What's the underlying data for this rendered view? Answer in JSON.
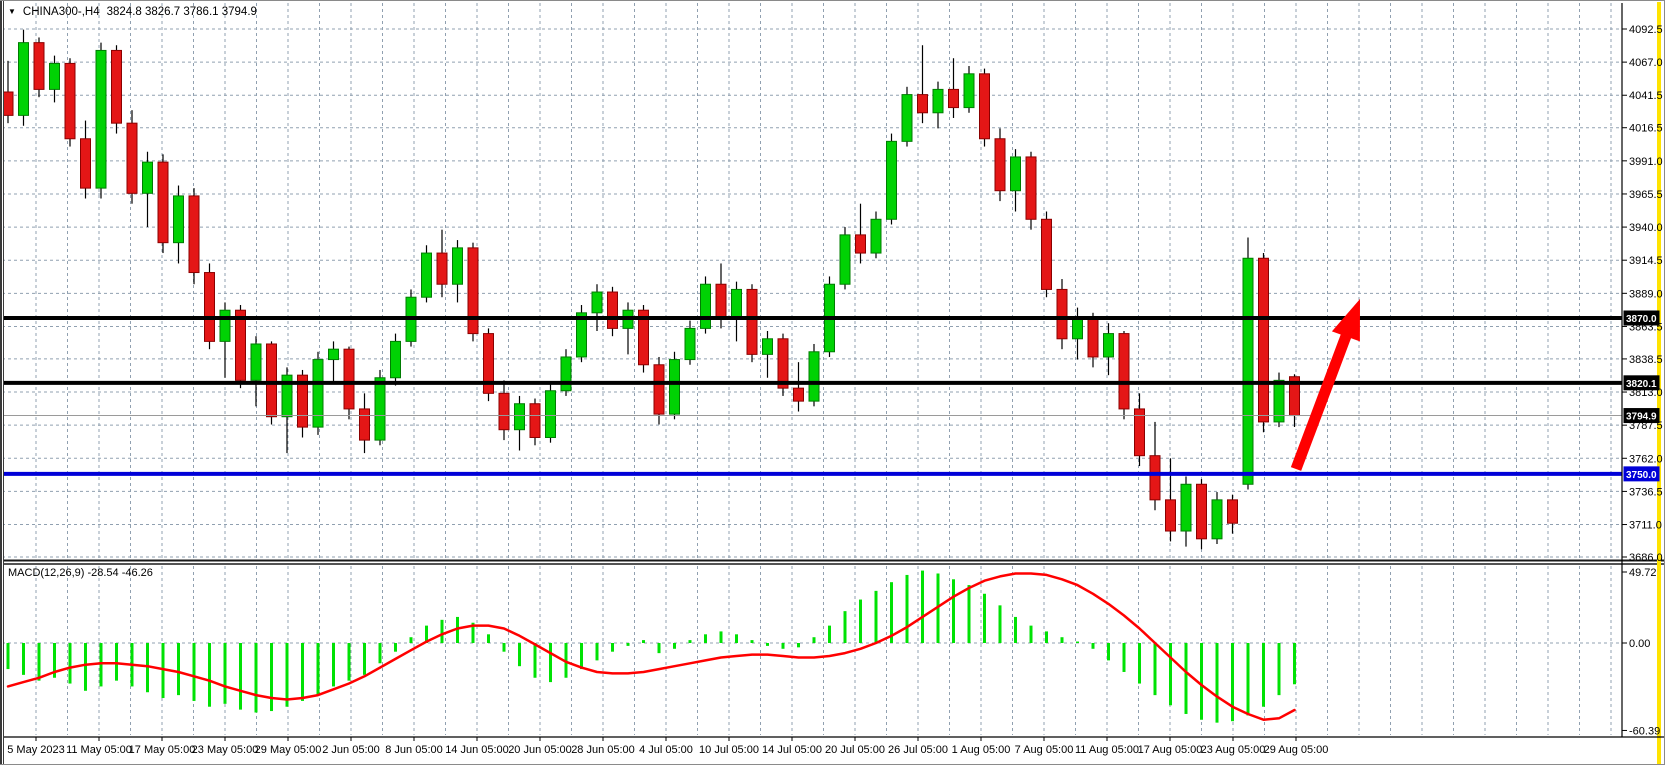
{
  "window": {
    "symbol": "CHINA300-,H4",
    "ohlc": "3824.8 3826.7 3786.1 3794.9",
    "dropdown_icon": "▼"
  },
  "indicator_label": "MACD(12,26,9) -28.54 -46.26",
  "colors": {
    "bull_fill": "#00D204",
    "bull_border": "#007C02",
    "bear_fill": "#E41616",
    "bear_border": "#8B0000",
    "wick": "#000000",
    "grid": "#90A0B0",
    "histogram": "#00E204",
    "signal": "#FF0000",
    "level_black": "#000000",
    "level_blue": "#0000D8",
    "current_price_line": "#9A9A9A",
    "arrow": "#FF0000",
    "axis_strip": "#FFE300"
  },
  "price_axis": {
    "ticks": [
      "4092.5",
      "4067.0",
      "4041.5",
      "4016.5",
      "3991.0",
      "3965.5",
      "3940.0",
      "3914.5",
      "3889.0",
      "3863.5",
      "3838.5",
      "3813.0",
      "3787.5",
      "3762.0",
      "3736.5",
      "3711.0",
      "3686.0"
    ],
    "badges": [
      {
        "text": "3870.0",
        "price": 3870.0,
        "style": "black"
      },
      {
        "text": "3820.1",
        "price": 3820.1,
        "style": "black"
      },
      {
        "text": "3794.9",
        "price": 3794.9,
        "style": "black"
      },
      {
        "text": "3750.0",
        "price": 3750.0,
        "style": "blue"
      }
    ]
  },
  "macd_axis": {
    "ticks": [
      {
        "text": "49.72",
        "value": 49.72
      },
      {
        "text": "0.00",
        "value": 0
      },
      {
        "text": "-60.39",
        "value": -60.39
      }
    ]
  },
  "time_axis": {
    "labels": [
      "5 May 2023",
      "11 May 05:00",
      "17 May 05:00",
      "23 May 05:00",
      "29 May 05:00",
      "2 Jun 05:00",
      "8 Jun 05:00",
      "14 Jun 05:00",
      "20 Jun 05:00",
      "28 Jun 05:00",
      "4 Jul 05:00",
      "10 Jul 05:00",
      "14 Jul 05:00",
      "20 Jul 05:00",
      "26 Jul 05:00",
      "1 Aug 05:00",
      "7 Aug 05:00",
      "11 Aug 05:00",
      "17 Aug 05:00",
      "23 Aug 05:00",
      "29 Aug 05:00"
    ]
  },
  "chart_data": [
    {
      "type": "candlestick",
      "title": "CHINA300-,H4",
      "timeframe": "H4",
      "ylim": [
        3686.0,
        4092.5
      ],
      "y_tick_step": 25.5,
      "grid": true,
      "last_candle": {
        "open": 3824.8,
        "high": 3826.7,
        "low": 3786.1,
        "close": 3794.9
      },
      "x_labels": [
        "5 May 2023",
        "11 May 05:00",
        "17 May 05:00",
        "23 May 05:00",
        "29 May 05:00",
        "2 Jun 05:00",
        "8 Jun 05:00",
        "14 Jun 05:00",
        "20 Jun 05:00",
        "28 Jun 05:00",
        "4 Jul 05:00",
        "10 Jul 05:00",
        "14 Jul 05:00",
        "20 Jul 05:00",
        "26 Jul 05:00",
        "1 Aug 05:00",
        "7 Aug 05:00",
        "11 Aug 05:00",
        "17 Aug 05:00",
        "23 Aug 05:00",
        "29 Aug 05:00"
      ],
      "hlines": [
        {
          "price": 3870.0,
          "color": "#000000",
          "width": 4,
          "role": "resistance"
        },
        {
          "price": 3820.1,
          "color": "#000000",
          "width": 4,
          "role": "resistance"
        },
        {
          "price": 3750.0,
          "color": "#0000D8",
          "width": 4,
          "role": "support"
        },
        {
          "price": 3794.9,
          "color": "#9A9A9A",
          "width": 1,
          "role": "current-price"
        }
      ],
      "annotations": [
        {
          "type": "arrow",
          "color": "#FF0000",
          "from_price": 3735,
          "to_price": 3878,
          "note": "up arrow from 3750 support toward 3870 resistance"
        }
      ],
      "ohlc": [
        [
          4044,
          4068,
          4020,
          4026
        ],
        [
          4026,
          4092,
          4018,
          4082
        ],
        [
          4082,
          4086,
          4040,
          4046
        ],
        [
          4046,
          4072,
          4036,
          4066
        ],
        [
          4066,
          4070,
          4002,
          4008
        ],
        [
          4008,
          4022,
          3962,
          3970
        ],
        [
          3970,
          4082,
          3962,
          4076
        ],
        [
          4076,
          4080,
          4012,
          4020
        ],
        [
          4020,
          4030,
          3958,
          3966
        ],
        [
          3966,
          3998,
          3940,
          3990
        ],
        [
          3990,
          3996,
          3920,
          3928
        ],
        [
          3928,
          3972,
          3912,
          3964
        ],
        [
          3964,
          3970,
          3896,
          3905
        ],
        [
          3905,
          3912,
          3846,
          3852
        ],
        [
          3852,
          3882,
          3824,
          3876
        ],
        [
          3876,
          3880,
          3816,
          3822
        ],
        [
          3822,
          3856,
          3802,
          3850
        ],
        [
          3850,
          3852,
          3788,
          3794
        ],
        [
          3794,
          3832,
          3766,
          3826
        ],
        [
          3826,
          3830,
          3778,
          3786
        ],
        [
          3786,
          3844,
          3780,
          3838
        ],
        [
          3838,
          3852,
          3820,
          3846
        ],
        [
          3846,
          3848,
          3792,
          3800
        ],
        [
          3800,
          3812,
          3766,
          3776
        ],
        [
          3776,
          3830,
          3772,
          3824
        ],
        [
          3824,
          3858,
          3818,
          3852
        ],
        [
          3852,
          3892,
          3848,
          3886
        ],
        [
          3886,
          3926,
          3882,
          3920
        ],
        [
          3920,
          3938,
          3886,
          3896
        ],
        [
          3896,
          3930,
          3882,
          3924
        ],
        [
          3924,
          3928,
          3852,
          3858
        ],
        [
          3858,
          3862,
          3806,
          3812
        ],
        [
          3812,
          3822,
          3776,
          3784
        ],
        [
          3784,
          3810,
          3768,
          3804
        ],
        [
          3804,
          3808,
          3772,
          3778
        ],
        [
          3778,
          3820,
          3774,
          3814
        ],
        [
          3814,
          3846,
          3810,
          3840
        ],
        [
          3840,
          3880,
          3836,
          3874
        ],
        [
          3874,
          3896,
          3860,
          3890
        ],
        [
          3890,
          3894,
          3856,
          3862
        ],
        [
          3862,
          3882,
          3842,
          3876
        ],
        [
          3876,
          3880,
          3828,
          3834
        ],
        [
          3834,
          3840,
          3788,
          3796
        ],
        [
          3796,
          3844,
          3792,
          3838
        ],
        [
          3838,
          3868,
          3834,
          3862
        ],
        [
          3862,
          3902,
          3858,
          3896
        ],
        [
          3896,
          3912,
          3862,
          3870
        ],
        [
          3870,
          3898,
          3852,
          3892
        ],
        [
          3892,
          3896,
          3836,
          3842
        ],
        [
          3842,
          3860,
          3824,
          3854
        ],
        [
          3854,
          3858,
          3810,
          3816
        ],
        [
          3816,
          3836,
          3798,
          3806
        ],
        [
          3806,
          3850,
          3802,
          3844
        ],
        [
          3844,
          3902,
          3840,
          3896
        ],
        [
          3896,
          3940,
          3892,
          3934
        ],
        [
          3934,
          3958,
          3912,
          3920
        ],
        [
          3920,
          3952,
          3916,
          3946
        ],
        [
          3946,
          4012,
          3942,
          4006
        ],
        [
          4006,
          4048,
          4002,
          4042
        ],
        [
          4042,
          4080,
          4020,
          4028
        ],
        [
          4028,
          4052,
          4016,
          4046
        ],
        [
          4046,
          4070,
          4024,
          4032
        ],
        [
          4032,
          4064,
          4028,
          4058
        ],
        [
          4058,
          4062,
          4002,
          4008
        ],
        [
          4008,
          4016,
          3960,
          3968
        ],
        [
          3968,
          4000,
          3952,
          3994
        ],
        [
          3994,
          3998,
          3938,
          3946
        ],
        [
          3946,
          3952,
          3886,
          3892
        ],
        [
          3892,
          3900,
          3846,
          3854
        ],
        [
          3854,
          3878,
          3838,
          3870
        ],
        [
          3870,
          3874,
          3832,
          3840
        ],
        [
          3840,
          3866,
          3826,
          3858
        ],
        [
          3858,
          3860,
          3792,
          3800
        ],
        [
          3800,
          3812,
          3756,
          3764
        ],
        [
          3764,
          3790,
          3722,
          3730
        ],
        [
          3730,
          3762,
          3698,
          3706
        ],
        [
          3706,
          3748,
          3694,
          3742
        ],
        [
          3742,
          3746,
          3692,
          3700
        ],
        [
          3700,
          3736,
          3696,
          3730
        ],
        [
          3730,
          3734,
          3704,
          3712
        ],
        [
          3742,
          3932,
          3738,
          3916
        ],
        [
          3916,
          3920,
          3782,
          3790
        ],
        [
          3790,
          3828,
          3786,
          3822
        ],
        [
          3824.8,
          3826.7,
          3786.1,
          3794.9
        ]
      ]
    },
    {
      "type": "macd",
      "params": "12,26,9",
      "current_values": {
        "macd": -28.54,
        "signal": -46.26
      },
      "ylim": [
        -60.39,
        49.72
      ],
      "histogram": [
        -18,
        -22,
        -26,
        -24,
        -28,
        -33,
        -30,
        -26,
        -30,
        -34,
        -38,
        -36,
        -40,
        -44,
        -42,
        -46,
        -48,
        -47,
        -44,
        -40,
        -36,
        -30,
        -26,
        -22,
        -14,
        -6,
        4,
        12,
        16,
        18,
        14,
        6,
        -6,
        -16,
        -24,
        -27,
        -24,
        -18,
        -12,
        -6,
        -2,
        2,
        -7,
        -4,
        2,
        6,
        8,
        6,
        2,
        -2,
        -4,
        -3,
        4,
        12,
        22,
        30,
        36,
        42,
        47,
        50,
        48,
        44,
        40,
        34,
        26,
        18,
        12,
        8,
        4,
        1,
        -4,
        -12,
        -20,
        -28,
        -36,
        -43,
        -49,
        -53,
        -55,
        -54,
        -50,
        -44,
        -36,
        -28.5
      ],
      "signal_line": [
        -30,
        -27,
        -24,
        -20,
        -17,
        -15,
        -14,
        -14,
        -15,
        -16,
        -18,
        -20,
        -23,
        -26,
        -30,
        -33,
        -36,
        -38,
        -39,
        -38,
        -36,
        -32,
        -28,
        -23,
        -17,
        -11,
        -5,
        1,
        6,
        10,
        12,
        12,
        10,
        5,
        -1,
        -7,
        -13,
        -17,
        -20,
        -21,
        -21,
        -20,
        -18,
        -16,
        -14,
        -12,
        -10,
        -9,
        -8,
        -8,
        -9,
        -10,
        -10,
        -9,
        -7,
        -4,
        0,
        5,
        11,
        18,
        25,
        32,
        38,
        43,
        46,
        48,
        48,
        47,
        44,
        40,
        34,
        27,
        19,
        10,
        0,
        -10,
        -20,
        -29,
        -37,
        -44,
        -49,
        -53,
        -52,
        -46.3
      ]
    }
  ]
}
